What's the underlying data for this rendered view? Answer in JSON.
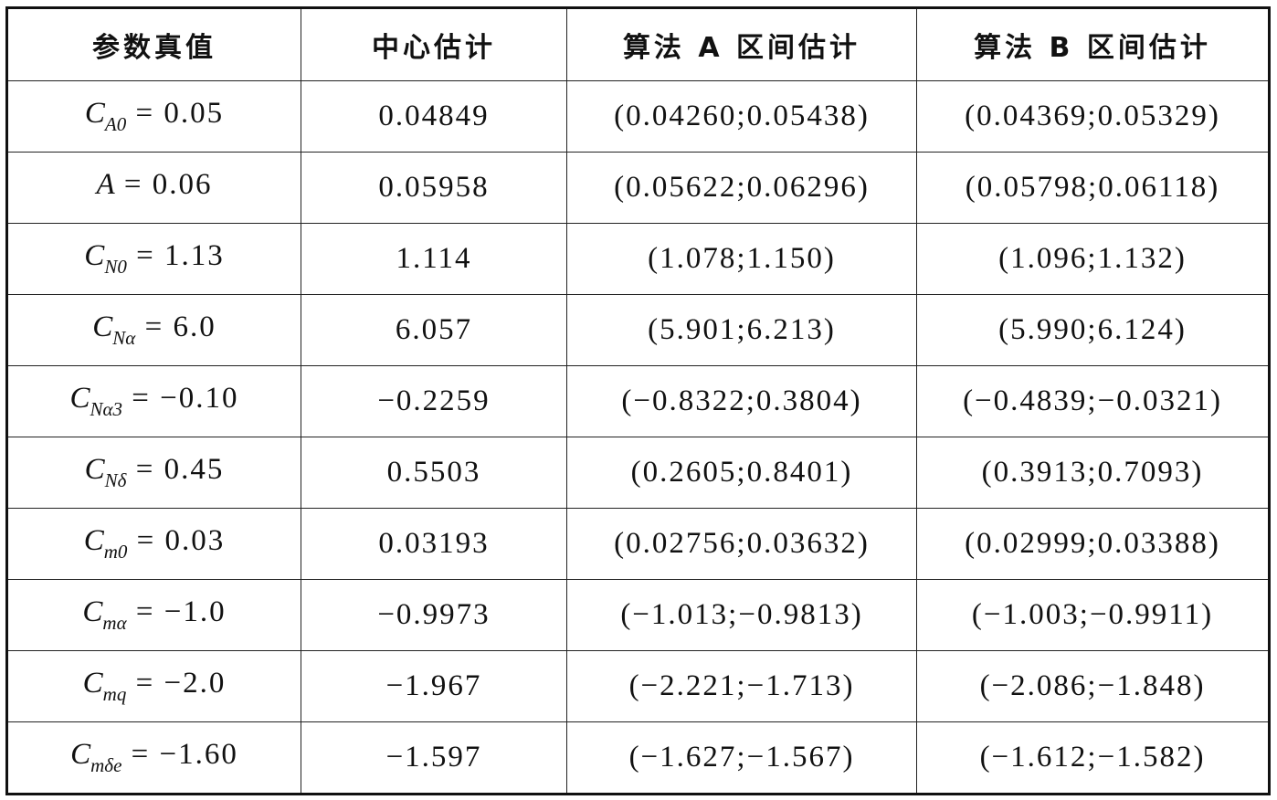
{
  "table": {
    "headers": [
      "参数真值",
      "中心估计",
      "算法 A 区间估计",
      "算法 B 区间估计"
    ],
    "rows": [
      {
        "symbol": "C",
        "sub": "A0",
        "value": " = 0.05",
        "center": "0.04849",
        "a": "(0.04260;0.05438)",
        "b": "(0.04369;0.05329)"
      },
      {
        "symbol": "A",
        "sub": "",
        "value": " = 0.06",
        "center": "0.05958",
        "a": "(0.05622;0.06296)",
        "b": "(0.05798;0.06118)"
      },
      {
        "symbol": "C",
        "sub": "N0",
        "value": " = 1.13",
        "center": "1.114",
        "a": "(1.078;1.150)",
        "b": "(1.096;1.132)"
      },
      {
        "symbol": "C",
        "sub": "Nα",
        "value": " = 6.0",
        "center": "6.057",
        "a": "(5.901;6.213)",
        "b": "(5.990;6.124)"
      },
      {
        "symbol": "C",
        "sub": "Nα3",
        "value": " = −0.10",
        "center": "−0.2259",
        "a": "(−0.8322;0.3804)",
        "b": "(−0.4839;−0.0321)"
      },
      {
        "symbol": "C",
        "sub": "Nδ",
        "value": " = 0.45",
        "center": "0.5503",
        "a": "(0.2605;0.8401)",
        "b": "(0.3913;0.7093)"
      },
      {
        "symbol": "C",
        "sub": "m0",
        "value": " = 0.03",
        "center": "0.03193",
        "a": "(0.02756;0.03632)",
        "b": "(0.02999;0.03388)"
      },
      {
        "symbol": "C",
        "sub": "mα",
        "value": " = −1.0",
        "center": "−0.9973",
        "a": "(−1.013;−0.9813)",
        "b": "(−1.003;−0.9911)"
      },
      {
        "symbol": "C",
        "sub": "mq",
        "value": " = −2.0",
        "center": "−1.967",
        "a": "(−2.221;−1.713)",
        "b": "(−2.086;−1.848)"
      },
      {
        "symbol": "C",
        "sub": "mδe",
        "value": " = −1.60",
        "center": "−1.597",
        "a": "(−1.627;−1.567)",
        "b": "(−1.612;−1.582)"
      }
    ]
  }
}
